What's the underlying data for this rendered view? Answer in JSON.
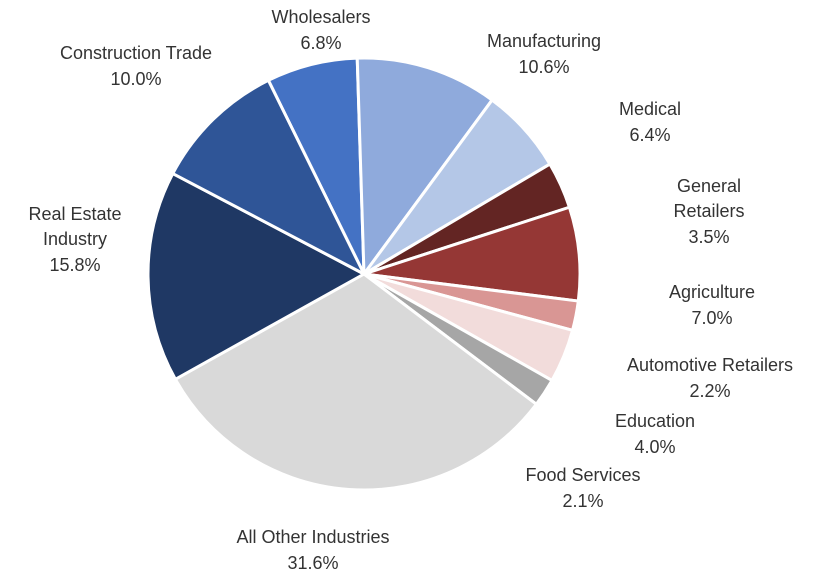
{
  "chart_data": {
    "type": "pie",
    "title": "",
    "slices": [
      {
        "label": "Wholesalers",
        "value": 6.8,
        "value_label": "6.8%",
        "color": "#4472C4"
      },
      {
        "label": "Manufacturing",
        "value": 10.6,
        "value_label": "10.6%",
        "color": "#8FAADC"
      },
      {
        "label": "Medical",
        "value": 6.4,
        "value_label": "6.4%",
        "color": "#B4C7E7"
      },
      {
        "label": "General Retailers",
        "value": 3.5,
        "value_label": "3.5%",
        "color": "#632523"
      },
      {
        "label": "Agriculture",
        "value": 7.0,
        "value_label": "7.0%",
        "color": "#953735"
      },
      {
        "label": "Automotive Retailers",
        "value": 2.2,
        "value_label": "2.2%",
        "color": "#D99694"
      },
      {
        "label": "Education",
        "value": 4.0,
        "value_label": "4.0%",
        "color": "#F2DCDB"
      },
      {
        "label": "Food Services",
        "value": 2.1,
        "value_label": "2.1%",
        "color": "#A6A6A6"
      },
      {
        "label": "All Other Industries",
        "value": 31.6,
        "value_label": "31.6%",
        "color": "#D9D9D9"
      },
      {
        "label": "Real Estate Industry",
        "value": 15.8,
        "value_label": "15.8%",
        "color": "#1F3864"
      },
      {
        "label": "Construction Trade",
        "value": 10.0,
        "value_label": "10.0%",
        "color": "#2F5597"
      }
    ],
    "legend": "none"
  }
}
